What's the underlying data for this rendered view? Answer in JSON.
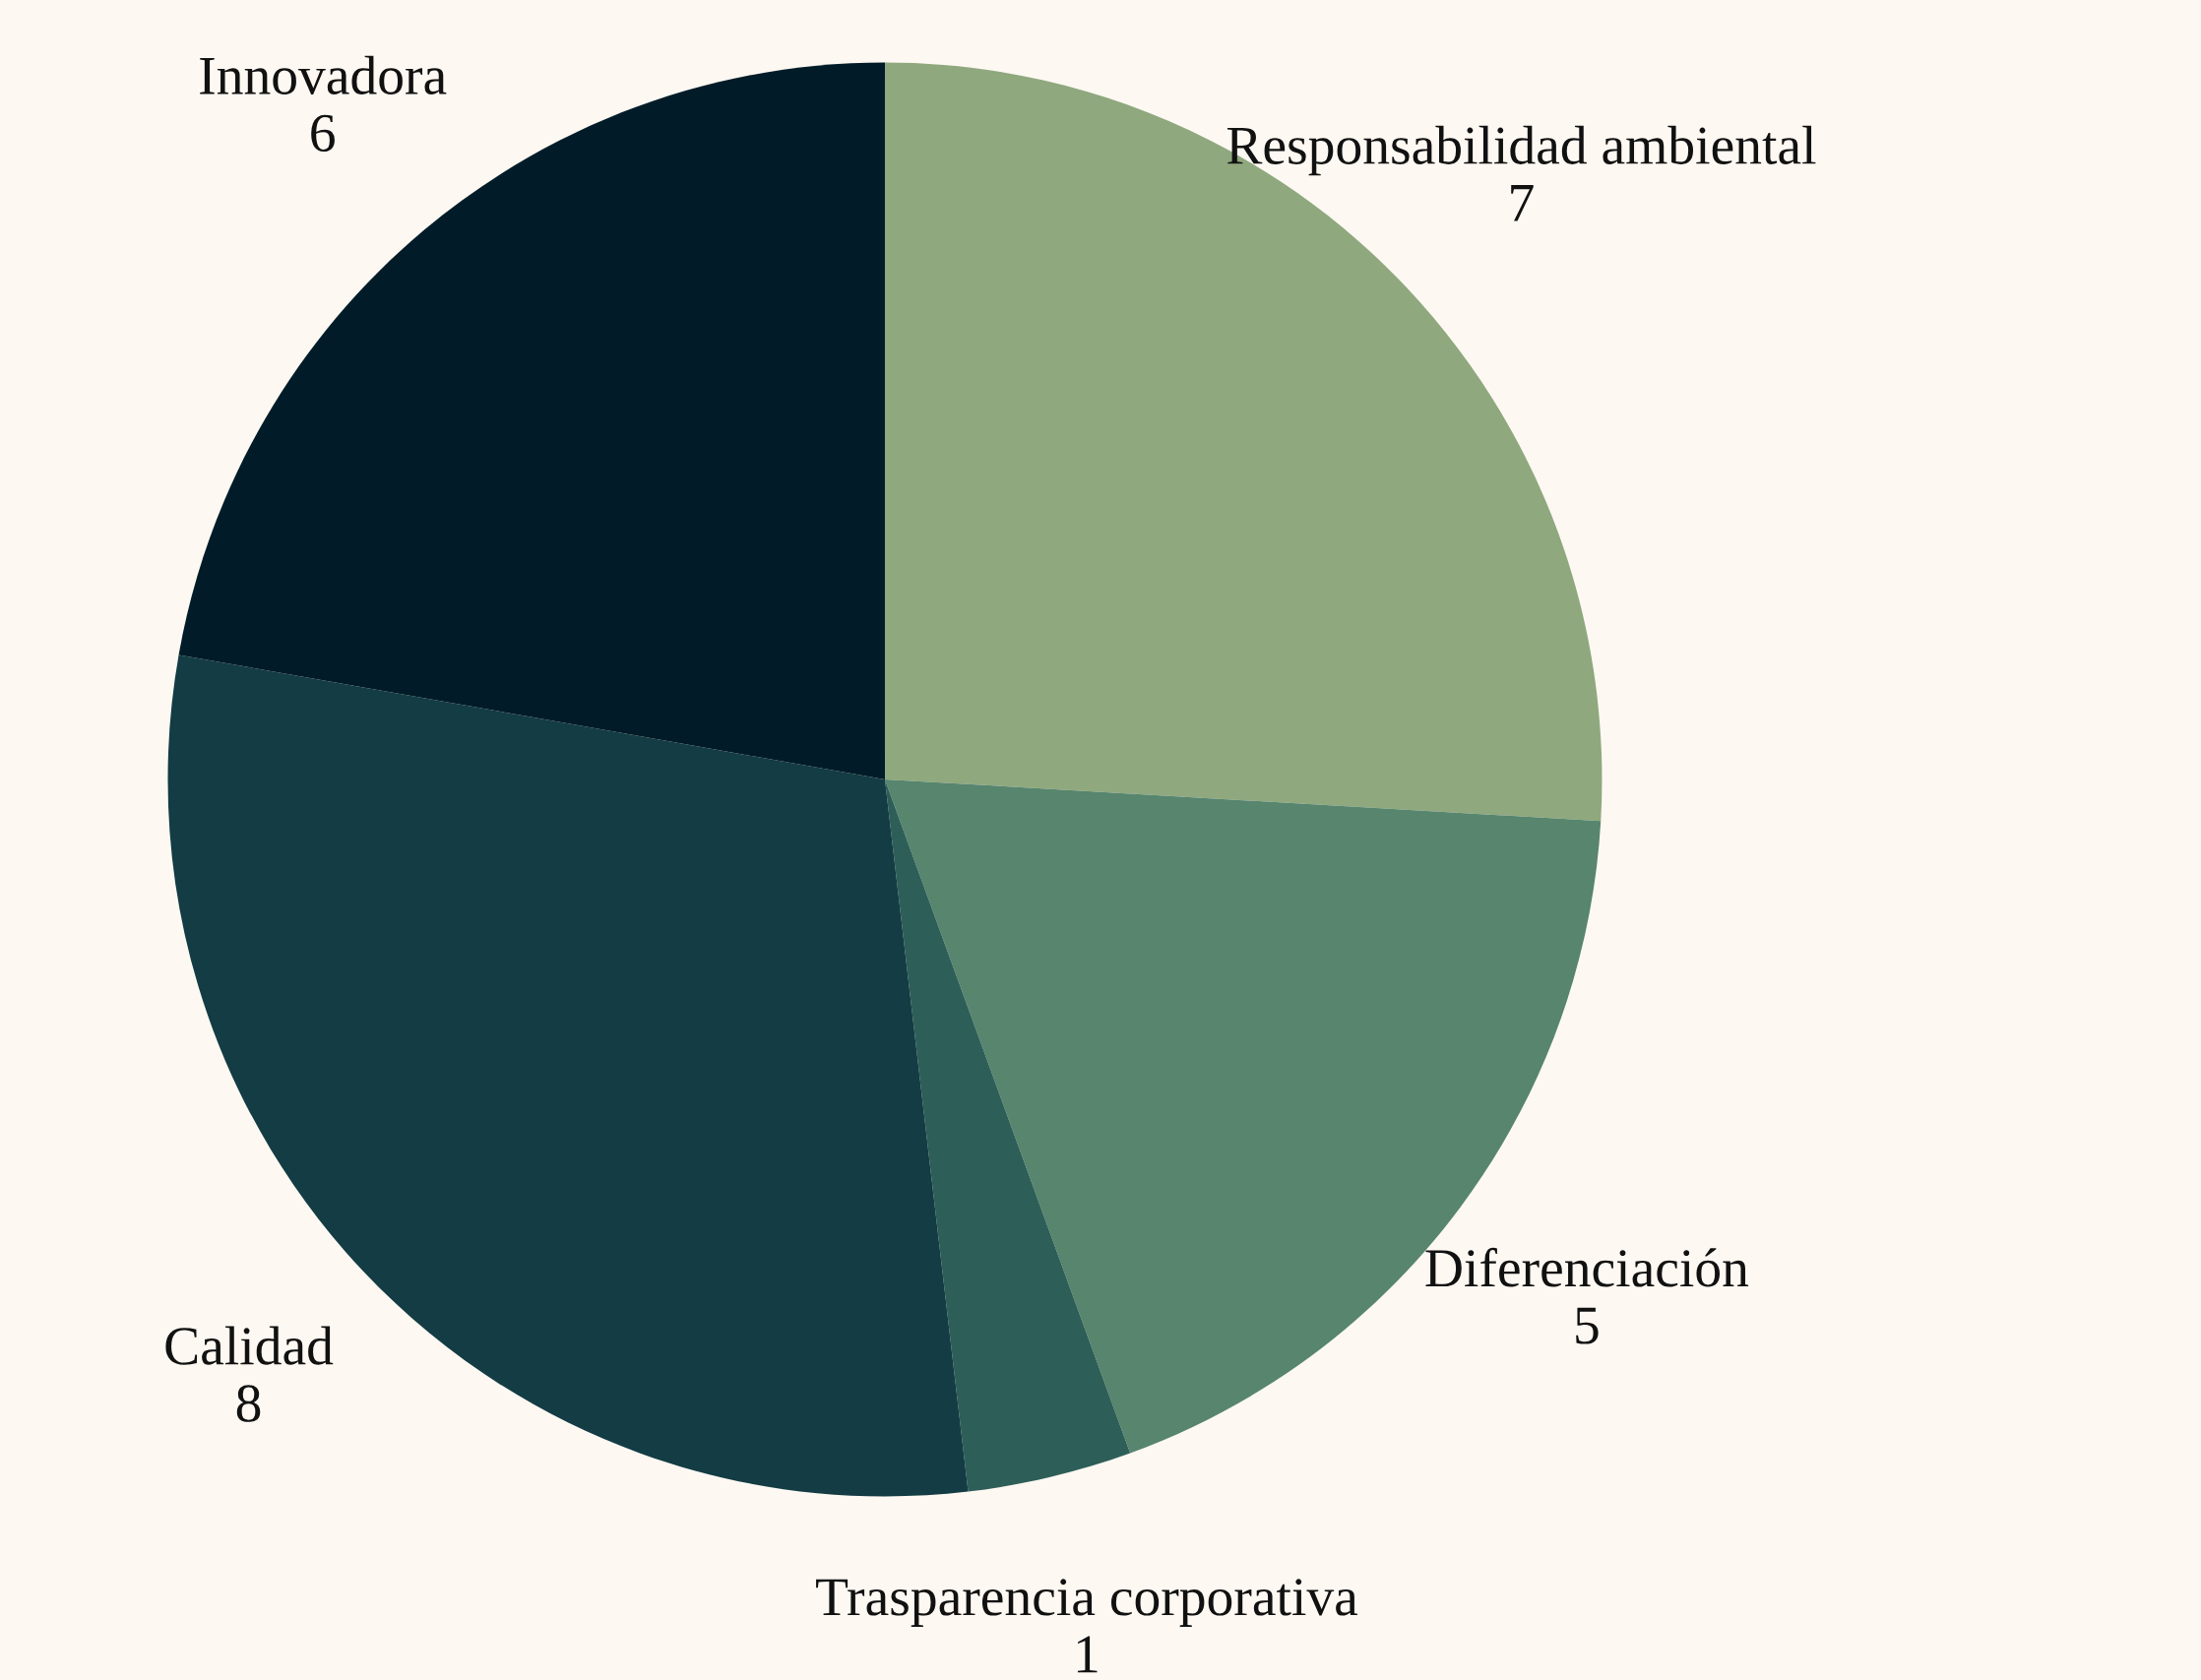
{
  "chart_data": {
    "type": "pie",
    "categories": [
      "Responsabilidad ambiental",
      "Diferenciación",
      "Trasparencia corporativa",
      "Calidad",
      "Innovadora"
    ],
    "values": [
      7,
      5,
      1,
      8,
      6
    ],
    "colors": [
      "#8fa87e",
      "#57856e",
      "#2e5e58",
      "#133c44",
      "#011c28"
    ],
    "data_labels": true
  }
}
